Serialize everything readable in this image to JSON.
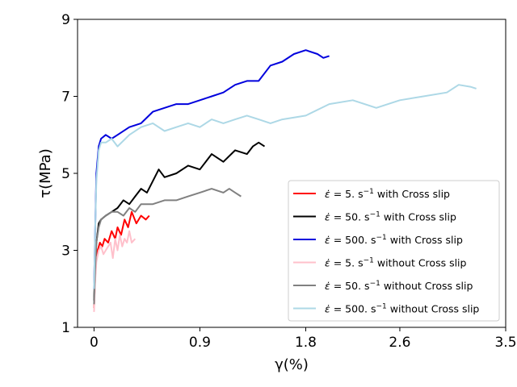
{
  "chart_data": {
    "type": "line",
    "title": "",
    "xlabel": "γ(%)",
    "ylabel": "τ(MPa)",
    "xlim": [
      -0.14,
      3.5
    ],
    "ylim": [
      1,
      9
    ],
    "xticks": [
      0,
      0.9,
      1.8,
      2.6,
      3.5
    ],
    "xtick_labels": [
      "0",
      "0.9",
      "1.8",
      "2.6",
      "3.5"
    ],
    "yticks": [
      1,
      3,
      5,
      7,
      9
    ],
    "ytick_labels": [
      "1",
      "3",
      "5",
      "7",
      "9"
    ],
    "grid": false,
    "legend_position": "lower-right",
    "series": [
      {
        "name": "ε̇ = 5. s⁻¹ with Cross slip",
        "rate": "5.",
        "suffix": "with Cross slip",
        "color": "#ff0000",
        "x": [
          0,
          0.01,
          0.02,
          0.03,
          0.05,
          0.07,
          0.09,
          0.12,
          0.15,
          0.18,
          0.2,
          0.23,
          0.26,
          0.29,
          0.32,
          0.36,
          0.4,
          0.44,
          0.47
        ],
        "y": [
          1.5,
          2.3,
          2.8,
          3.0,
          3.2,
          3.1,
          3.3,
          3.2,
          3.5,
          3.3,
          3.6,
          3.4,
          3.8,
          3.6,
          4.0,
          3.7,
          3.9,
          3.8,
          3.9
        ]
      },
      {
        "name": "ε̇ = 50. s⁻¹ with Cross slip",
        "rate": "50.",
        "suffix": "with Cross slip",
        "color": "#000000",
        "x": [
          0,
          0.01,
          0.02,
          0.04,
          0.06,
          0.1,
          0.15,
          0.2,
          0.25,
          0.3,
          0.35,
          0.4,
          0.45,
          0.5,
          0.55,
          0.6,
          0.7,
          0.8,
          0.9,
          1.0,
          1.1,
          1.2,
          1.3,
          1.35,
          1.4,
          1.45
        ],
        "y": [
          1.7,
          2.6,
          3.2,
          3.7,
          3.8,
          3.9,
          4.0,
          4.1,
          4.3,
          4.2,
          4.4,
          4.6,
          4.5,
          4.8,
          5.1,
          4.9,
          5.0,
          5.2,
          5.1,
          5.5,
          5.3,
          5.6,
          5.5,
          5.7,
          5.8,
          5.7
        ]
      },
      {
        "name": "ε̇ = 500. s⁻¹ with Cross slip",
        "rate": "500.",
        "suffix": "with Cross slip",
        "color": "#0000dd",
        "x": [
          0,
          0.01,
          0.02,
          0.04,
          0.06,
          0.1,
          0.15,
          0.2,
          0.3,
          0.4,
          0.5,
          0.6,
          0.7,
          0.8,
          0.9,
          1.0,
          1.1,
          1.2,
          1.3,
          1.4,
          1.5,
          1.6,
          1.7,
          1.8,
          1.9,
          1.95,
          2.0
        ],
        "y": [
          2.0,
          3.5,
          5.0,
          5.7,
          5.9,
          6.0,
          5.9,
          6.0,
          6.2,
          6.3,
          6.6,
          6.7,
          6.8,
          6.8,
          6.9,
          7.0,
          7.1,
          7.3,
          7.4,
          7.4,
          7.8,
          7.9,
          8.1,
          8.2,
          8.1,
          8.0,
          8.05
        ]
      },
      {
        "name": "ε̇ = 5. s⁻¹ without Cross slip",
        "rate": "5.",
        "suffix": "without Cross slip",
        "color": "#ffc0cb",
        "x": [
          0,
          0.01,
          0.02,
          0.04,
          0.06,
          0.08,
          0.1,
          0.12,
          0.14,
          0.16,
          0.18,
          0.2,
          0.22,
          0.24,
          0.26,
          0.28,
          0.3,
          0.32,
          0.35
        ],
        "y": [
          1.4,
          2.2,
          2.7,
          3.0,
          3.1,
          2.9,
          3.0,
          3.1,
          3.2,
          2.8,
          3.3,
          3.0,
          3.4,
          3.1,
          3.3,
          3.2,
          3.5,
          3.2,
          3.3
        ]
      },
      {
        "name": "ε̇ = 50. s⁻¹ without Cross slip",
        "rate": "50.",
        "suffix": "without Cross slip",
        "color": "#808080",
        "x": [
          0,
          0.01,
          0.02,
          0.04,
          0.06,
          0.1,
          0.15,
          0.2,
          0.25,
          0.3,
          0.35,
          0.4,
          0.5,
          0.6,
          0.7,
          0.8,
          0.9,
          1.0,
          1.1,
          1.15,
          1.2,
          1.25
        ],
        "y": [
          1.6,
          2.5,
          3.2,
          3.6,
          3.8,
          3.9,
          4.0,
          4.0,
          3.9,
          4.1,
          4.0,
          4.2,
          4.2,
          4.3,
          4.3,
          4.4,
          4.5,
          4.6,
          4.5,
          4.6,
          4.5,
          4.4
        ]
      },
      {
        "name": "ε̇ = 500. s⁻¹ without Cross slip",
        "rate": "500.",
        "suffix": "without Cross slip",
        "color": "#add8e6",
        "x": [
          0,
          0.01,
          0.02,
          0.04,
          0.06,
          0.1,
          0.15,
          0.2,
          0.3,
          0.4,
          0.5,
          0.6,
          0.7,
          0.8,
          0.9,
          1.0,
          1.1,
          1.2,
          1.3,
          1.4,
          1.5,
          1.6,
          1.8,
          2.0,
          2.2,
          2.4,
          2.6,
          2.8,
          3.0,
          3.1,
          3.2,
          3.25
        ],
        "y": [
          2.0,
          3.5,
          4.8,
          5.6,
          5.8,
          5.8,
          5.9,
          5.7,
          6.0,
          6.2,
          6.3,
          6.1,
          6.2,
          6.3,
          6.2,
          6.4,
          6.3,
          6.4,
          6.5,
          6.4,
          6.3,
          6.4,
          6.5,
          6.8,
          6.9,
          6.7,
          6.9,
          7.0,
          7.1,
          7.3,
          7.25,
          7.2
        ]
      }
    ]
  }
}
